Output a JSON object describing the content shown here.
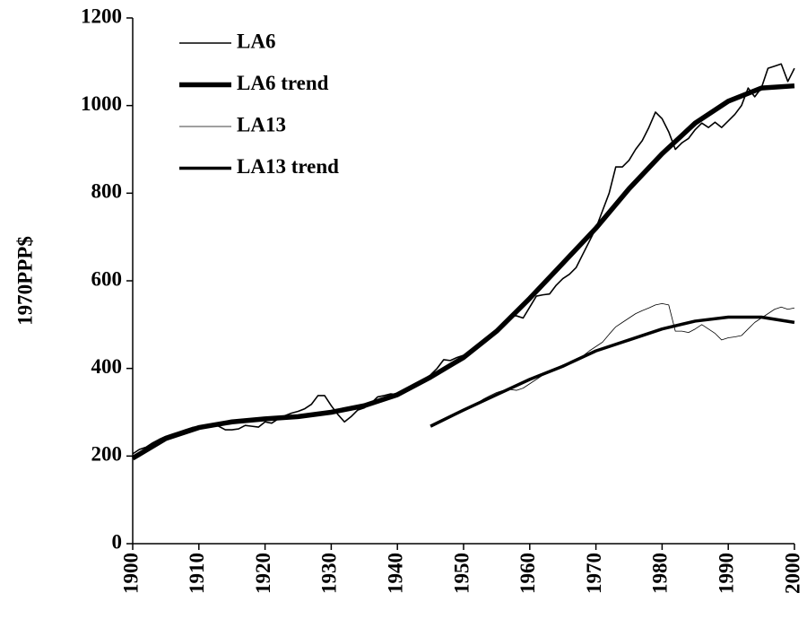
{
  "chart_data": {
    "type": "line",
    "y_label": "1970PPP$",
    "xlim": [
      1900,
      2000
    ],
    "xticks": [
      1900,
      1910,
      1920,
      1930,
      1940,
      1950,
      1960,
      1970,
      1980,
      1990,
      2000
    ],
    "ylim": [
      0,
      1200
    ],
    "yticks": [
      0,
      200,
      400,
      600,
      800,
      1000,
      1200
    ],
    "grid": false,
    "legend": "upper left",
    "series": [
      {
        "name": "LA6",
        "color": "#000000",
        "line_width": 1.6,
        "x": [
          1900,
          1901,
          1902,
          1903,
          1904,
          1905,
          1906,
          1907,
          1908,
          1909,
          1910,
          1911,
          1912,
          1913,
          1914,
          1915,
          1916,
          1917,
          1918,
          1919,
          1920,
          1921,
          1922,
          1923,
          1924,
          1925,
          1926,
          1927,
          1928,
          1929,
          1930,
          1931,
          1932,
          1933,
          1934,
          1935,
          1936,
          1937,
          1938,
          1939,
          1940,
          1941,
          1942,
          1943,
          1944,
          1945,
          1946,
          1947,
          1948,
          1949,
          1950,
          1951,
          1952,
          1953,
          1954,
          1955,
          1956,
          1957,
          1958,
          1959,
          1960,
          1961,
          1962,
          1963,
          1964,
          1965,
          1966,
          1967,
          1968,
          1969,
          1970,
          1971,
          1972,
          1973,
          1974,
          1975,
          1976,
          1977,
          1978,
          1979,
          1980,
          1981,
          1982,
          1983,
          1984,
          1985,
          1986,
          1987,
          1988,
          1989,
          1990,
          1991,
          1992,
          1993,
          1994,
          1995,
          1996,
          1997,
          1998,
          1999,
          2000
        ],
        "values": [
          205,
          215,
          220,
          230,
          238,
          245,
          250,
          255,
          260,
          265,
          268,
          270,
          272,
          268,
          260,
          260,
          262,
          270,
          268,
          266,
          278,
          275,
          285,
          292,
          298,
          302,
          308,
          318,
          338,
          338,
          315,
          295,
          278,
          290,
          305,
          310,
          320,
          335,
          338,
          342,
          340,
          350,
          355,
          365,
          375,
          385,
          400,
          420,
          418,
          425,
          430,
          440,
          448,
          460,
          475,
          490,
          500,
          520,
          520,
          515,
          540,
          565,
          568,
          570,
          590,
          605,
          615,
          630,
          660,
          690,
          720,
          760,
          800,
          860,
          860,
          875,
          900,
          920,
          950,
          985,
          970,
          940,
          900,
          915,
          925,
          945,
          960,
          950,
          962,
          950,
          965,
          980,
          1000,
          1040,
          1020,
          1040,
          1085,
          1090,
          1095,
          1055,
          1085
        ]
      },
      {
        "name": "LA6 trend",
        "color": "#000000",
        "line_width": 5.5,
        "x": [
          1900,
          1905,
          1910,
          1915,
          1920,
          1925,
          1930,
          1935,
          1940,
          1945,
          1950,
          1955,
          1960,
          1965,
          1970,
          1975,
          1980,
          1985,
          1990,
          1995,
          2000
        ],
        "values": [
          195,
          240,
          265,
          278,
          285,
          290,
          300,
          315,
          340,
          380,
          425,
          485,
          560,
          640,
          720,
          810,
          890,
          960,
          1010,
          1040,
          1045
        ]
      },
      {
        "name": "LA13",
        "color": "#000000",
        "line_width": 0.8,
        "x": [
          1945,
          1946,
          1947,
          1948,
          1949,
          1950,
          1951,
          1952,
          1953,
          1954,
          1955,
          1956,
          1957,
          1958,
          1959,
          1960,
          1961,
          1962,
          1963,
          1964,
          1965,
          1966,
          1967,
          1968,
          1969,
          1970,
          1971,
          1972,
          1973,
          1974,
          1975,
          1976,
          1977,
          1978,
          1979,
          1980,
          1981,
          1982,
          1983,
          1984,
          1985,
          1986,
          1987,
          1988,
          1989,
          1990,
          1991,
          1992,
          1993,
          1994,
          1995,
          1996,
          1997,
          1998,
          1999,
          2000
        ],
        "values": [
          270,
          278,
          285,
          292,
          300,
          305,
          312,
          320,
          330,
          338,
          345,
          350,
          352,
          350,
          355,
          365,
          375,
          385,
          392,
          400,
          408,
          412,
          420,
          428,
          440,
          450,
          460,
          478,
          495,
          505,
          515,
          525,
          532,
          538,
          545,
          548,
          545,
          485,
          485,
          482,
          490,
          500,
          490,
          480,
          465,
          470,
          472,
          475,
          490,
          505,
          515,
          525,
          535,
          540,
          535,
          538
        ]
      },
      {
        "name": "LA13 trend",
        "color": "#000000",
        "line_width": 3.5,
        "x": [
          1945,
          1950,
          1955,
          1960,
          1965,
          1970,
          1975,
          1980,
          1985,
          1990,
          1995,
          2000
        ],
        "values": [
          268,
          305,
          340,
          375,
          405,
          440,
          465,
          490,
          508,
          517,
          517,
          505
        ]
      }
    ]
  }
}
